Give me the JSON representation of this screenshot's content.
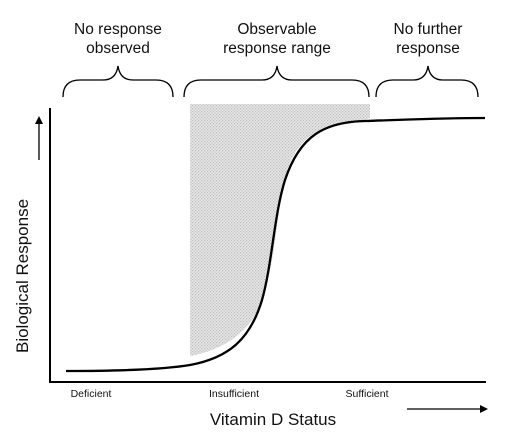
{
  "chart_data": {
    "type": "line",
    "title": "",
    "xlabel": "Vitamin D Status",
    "ylabel": "Biological Response",
    "x_axis_arrow": "right",
    "y_axis_arrow": "up",
    "grid": false,
    "legend": "none",
    "tick_labels": [
      "Deficient",
      "Insufficient",
      "Sufficient"
    ],
    "regions": [
      {
        "name": "no-response",
        "label_lines": [
          "No response",
          "observed"
        ]
      },
      {
        "name": "observable-range",
        "label_lines": [
          "Observable",
          "response range"
        ]
      },
      {
        "name": "no-further-response",
        "label_lines": [
          "No further",
          "response"
        ]
      }
    ],
    "shaded_region": {
      "fill": "#d4d4d4",
      "pattern": "stipple"
    },
    "curve": {
      "color": "#000000",
      "shape": "sigmoid"
    }
  }
}
